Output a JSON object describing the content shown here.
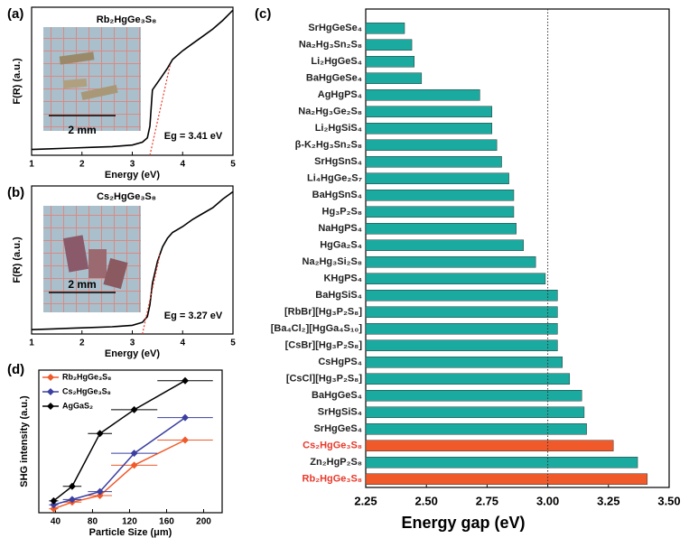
{
  "chart_data": [
    {
      "type": "line",
      "panel": "(a)",
      "title": "Rb₂HgGe₃S₈",
      "x_label": "Energy (eV)",
      "y_label": "F(R) (a.u.)",
      "x": [
        1,
        1.4,
        1.8,
        2.2,
        2.6,
        3.0,
        3.2,
        3.3,
        3.35,
        3.4,
        3.5,
        3.6,
        3.7,
        3.8,
        4.0,
        4.2,
        4.4,
        4.6,
        4.8,
        5.0
      ],
      "values": [
        0.04,
        0.045,
        0.05,
        0.055,
        0.06,
        0.07,
        0.09,
        0.12,
        0.2,
        0.45,
        0.5,
        0.55,
        0.6,
        0.66,
        0.72,
        0.77,
        0.82,
        0.87,
        0.93,
        1.0
      ],
      "color": "#000000",
      "xlim": [
        1,
        5
      ],
      "xticks": [
        1,
        2,
        3,
        4,
        5
      ],
      "ylim": [
        0,
        1.02
      ],
      "tangent": {
        "x": [
          3.35,
          3.75
        ],
        "values": [
          0.0,
          0.62
        ],
        "color": "#e8392a"
      },
      "annotation": "Eg = 3.41 eV",
      "inset_label": "2 mm"
    },
    {
      "type": "line",
      "panel": "(b)",
      "title": "Cs₂HgGe₃S₈",
      "x_label": "Energy (eV)",
      "y_label": "F(R) (a.u.)",
      "x": [
        1,
        1.4,
        1.8,
        2.2,
        2.6,
        3.0,
        3.2,
        3.3,
        3.35,
        3.4,
        3.5,
        3.6,
        3.7,
        3.8,
        4.0,
        4.2,
        4.4,
        4.6,
        4.8,
        5.0
      ],
      "values": [
        0.03,
        0.035,
        0.04,
        0.045,
        0.05,
        0.06,
        0.08,
        0.12,
        0.2,
        0.35,
        0.5,
        0.6,
        0.66,
        0.7,
        0.74,
        0.79,
        0.83,
        0.87,
        0.93,
        0.98
      ],
      "color": "#000000",
      "xlim": [
        1,
        5
      ],
      "xticks": [
        1,
        2,
        3,
        4,
        5
      ],
      "ylim": [
        0,
        1.02
      ],
      "tangent": {
        "x": [
          3.2,
          3.55
        ],
        "values": [
          0.0,
          0.55
        ],
        "color": "#e8392a"
      },
      "annotation": "Eg = 3.27 eV",
      "inset_label": "2 mm"
    },
    {
      "type": "bar",
      "panel": "(c)",
      "x_label": "Energy gap (eV)",
      "categories": [
        "SrHgGeSe₄",
        "Na₂Hg₃Sn₂S₈",
        "Li₂HgGeS₄",
        "BaHgGeSe₄",
        "AgHgPS₄",
        "Na₂Hg₃Ge₂S₈",
        "Li₂HgSiS₄",
        "β-K₂Hg₃Sn₂S₈",
        "SrHgSnS₄",
        "Li₄HgGe₂S₇",
        "BaHgSnS₄",
        "Hg₃P₂S₈",
        "NaHgPS₄",
        "HgGa₂S₄",
        "Na₂Hg₃Si₂S₈",
        "KHgPS₄",
        "BaHgSiS₄",
        "[RbBr][Hg₃P₂S₈]",
        "[Ba₄Cl₂][HgGa₄S₁₀]",
        "[CsBr][Hg₃P₂S₈]",
        "CsHgPS₄",
        "[CsCl][Hg₃P₂S₈]",
        "BaHgGeS₄",
        "SrHgSiS₄",
        "SrHgGeS₄",
        "Cs₂HgGe₃S₈",
        "Zn₂HgP₂S₈",
        "Rb₂HgGe₃S₈"
      ],
      "values": [
        2.41,
        2.44,
        2.45,
        2.48,
        2.72,
        2.77,
        2.77,
        2.79,
        2.81,
        2.84,
        2.86,
        2.86,
        2.87,
        2.9,
        2.95,
        2.99,
        3.04,
        3.04,
        3.04,
        3.04,
        3.06,
        3.09,
        3.14,
        3.15,
        3.16,
        3.27,
        3.37,
        3.41
      ],
      "color": "#1aaa9f",
      "colors": [
        "#1aaa9f",
        "#1aaa9f",
        "#1aaa9f",
        "#1aaa9f",
        "#1aaa9f",
        "#1aaa9f",
        "#1aaa9f",
        "#1aaa9f",
        "#1aaa9f",
        "#1aaa9f",
        "#1aaa9f",
        "#1aaa9f",
        "#1aaa9f",
        "#1aaa9f",
        "#1aaa9f",
        "#1aaa9f",
        "#1aaa9f",
        "#1aaa9f",
        "#1aaa9f",
        "#1aaa9f",
        "#1aaa9f",
        "#1aaa9f",
        "#1aaa9f",
        "#1aaa9f",
        "#1aaa9f",
        "#f05a2a",
        "#1aaa9f",
        "#f05a2a"
      ],
      "xlim": [
        2.25,
        3.5
      ],
      "xticks": [
        2.25,
        {
          "value": 2.5,
          "label": "2.50"
        },
        2.75,
        {
          "value": 3.0,
          "label": "3.00"
        },
        3.25,
        {
          "value": 3.5,
          "label": "3.50"
        }
      ],
      "reference_line": 3.0
    },
    {
      "type": "line",
      "panel": "(d)",
      "x_label": "Particle Size (μm)",
      "y_label": "SHG intensity (a.u.)",
      "x": [
        38,
        58,
        88,
        125,
        180
      ],
      "series": [
        {
          "name": "Rb₂HgGe₃S₈",
          "color": "#f05a2a",
          "values": [
            0.03,
            0.08,
            0.13,
            0.36,
            0.55
          ],
          "xerr": [
            5,
            10,
            13,
            25,
            30
          ]
        },
        {
          "name": "Cs₂HgGe₃S₈",
          "color": "#3a3fa0",
          "values": [
            0.06,
            0.1,
            0.16,
            0.45,
            0.72
          ],
          "xerr": [
            5,
            10,
            13,
            25,
            30
          ]
        },
        {
          "name": "AgGaS₂",
          "color": "#000000",
          "values": [
            0.09,
            0.2,
            0.6,
            0.78,
            1.0
          ],
          "xerr": [
            5,
            10,
            13,
            25,
            30
          ]
        }
      ],
      "xlim": [
        22,
        220
      ],
      "xticks": [
        40,
        80,
        120,
        160,
        200
      ],
      "ylim": [
        0,
        1.08
      ]
    }
  ]
}
